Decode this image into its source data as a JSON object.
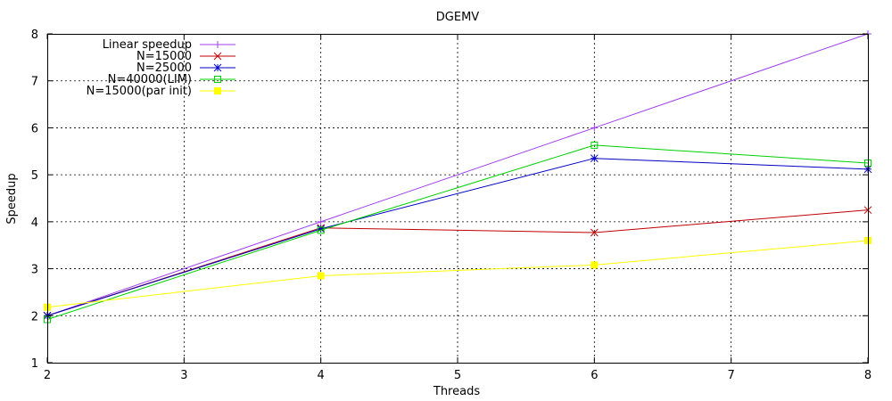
{
  "chart_data": {
    "type": "line",
    "title": "DGEMV",
    "xlabel": "Threads",
    "ylabel": "Speedup",
    "xlim": [
      2,
      8
    ],
    "ylim": [
      1,
      8
    ],
    "xticks": [
      2,
      3,
      4,
      5,
      6,
      7,
      8
    ],
    "yticks": [
      1,
      2,
      3,
      4,
      5,
      6,
      7,
      8
    ],
    "grid": true,
    "legend_position": "top-left",
    "x": [
      2,
      4,
      6,
      8
    ],
    "series": [
      {
        "name": "Linear speedup",
        "color": "#a040f0",
        "marker": "plus",
        "values": [
          2,
          4,
          6,
          8
        ]
      },
      {
        "name": "N=15000",
        "color": "#c00000",
        "marker": "cross",
        "values": [
          2.0,
          3.87,
          3.77,
          4.25
        ]
      },
      {
        "name": "N=25000",
        "color": "#0000c0",
        "marker": "star",
        "values": [
          2.0,
          3.85,
          5.35,
          5.12
        ]
      },
      {
        "name": "N=40000(LIM)",
        "color": "#00d000",
        "marker": "open-square",
        "values": [
          1.92,
          3.82,
          5.63,
          5.25
        ]
      },
      {
        "name": "N=15000(par init)",
        "color": "#ffff00",
        "marker": "filled-square",
        "values": [
          2.18,
          2.85,
          3.08,
          3.6
        ]
      }
    ]
  }
}
